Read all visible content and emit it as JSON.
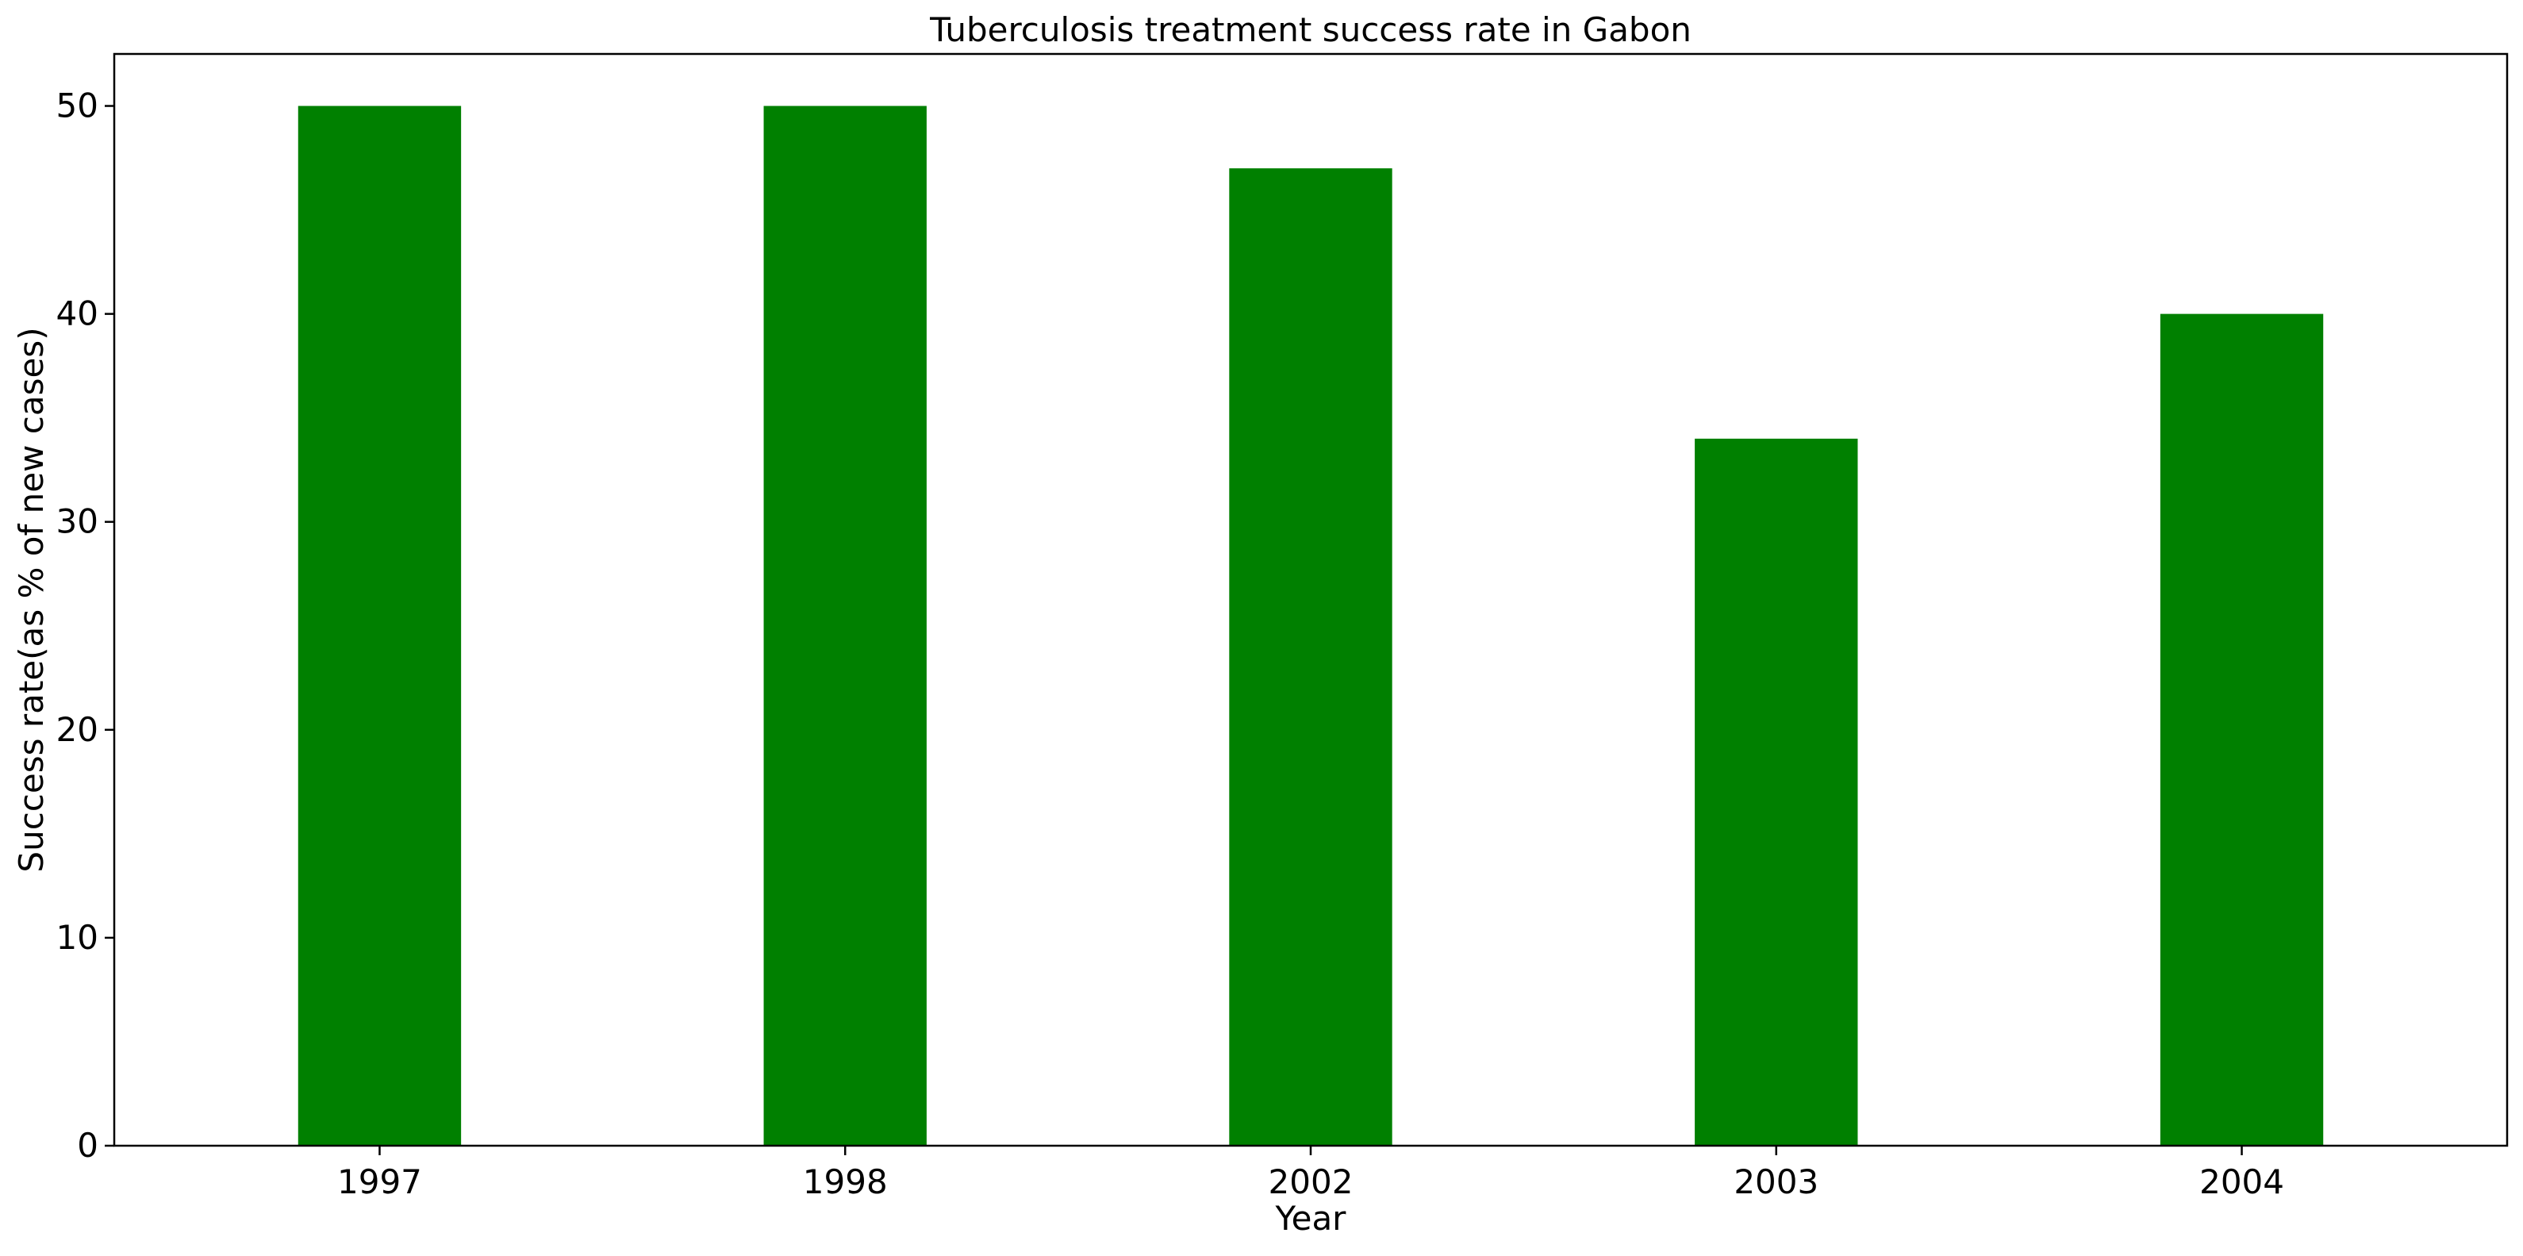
{
  "chart_data": {
    "type": "bar",
    "title": "Tuberculosis treatment success rate in Gabon",
    "xlabel": "Year",
    "ylabel": "Success rate(as % of new cases)",
    "categories": [
      "1997",
      "1998",
      "2002",
      "2003",
      "2004"
    ],
    "values": [
      50,
      50,
      47,
      34,
      40
    ],
    "ylim": [
      0,
      52.5
    ],
    "yticks": [
      0,
      10,
      20,
      30,
      40,
      50
    ],
    "ytick_labels": [
      "0",
      "10",
      "20",
      "30",
      "40",
      "50"
    ],
    "grid": false,
    "legend": "none",
    "bar_color": "#008000"
  }
}
